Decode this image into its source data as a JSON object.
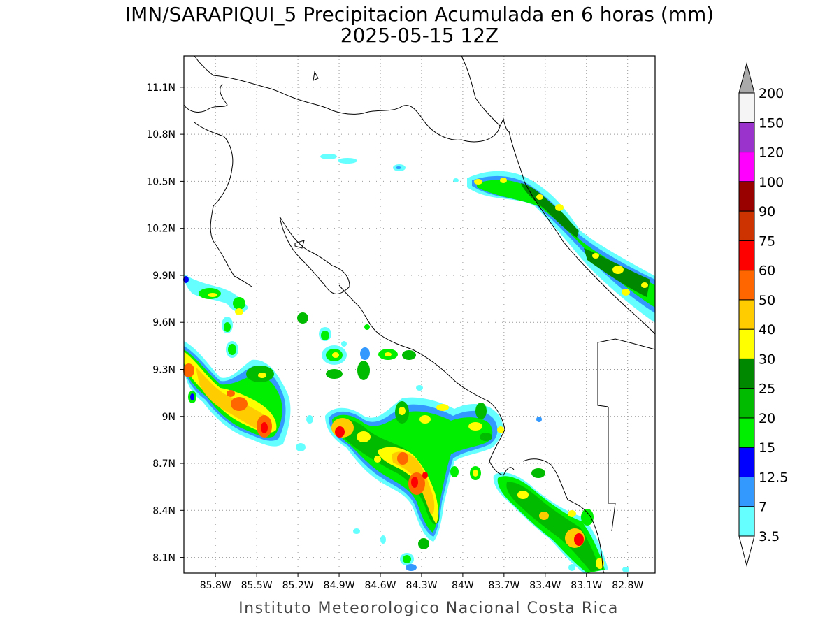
{
  "title": {
    "line1": "IMN/SARAPIQUI_5 Precipitacion Acumulada en 6 horas (mm)",
    "line2": "2025-05-15 12Z"
  },
  "credit": "Instituto Meteorologico Nacional Costa Rica",
  "map": {
    "lon_range": [
      -86.03,
      -82.6
    ],
    "lat_range": [
      8.0,
      11.3
    ],
    "lon_ticks": [
      {
        "value": -85.8,
        "label": "85.8W"
      },
      {
        "value": -85.5,
        "label": "85.5W"
      },
      {
        "value": -85.2,
        "label": "85.2W"
      },
      {
        "value": -84.9,
        "label": "84.9W"
      },
      {
        "value": -84.6,
        "label": "84.6W"
      },
      {
        "value": -84.3,
        "label": "84.3W"
      },
      {
        "value": -84.0,
        "label": "84W"
      },
      {
        "value": -83.7,
        "label": "83.7W"
      },
      {
        "value": -83.4,
        "label": "83.4W"
      },
      {
        "value": -83.1,
        "label": "83.1W"
      },
      {
        "value": -82.8,
        "label": "82.8W"
      }
    ],
    "lat_ticks": [
      {
        "value": 8.1,
        "label": "8.1N"
      },
      {
        "value": 8.4,
        "label": "8.4N"
      },
      {
        "value": 8.7,
        "label": "8.7N"
      },
      {
        "value": 9.0,
        "label": "9N"
      },
      {
        "value": 9.3,
        "label": "9.3N"
      },
      {
        "value": 9.6,
        "label": "9.6N"
      },
      {
        "value": 9.9,
        "label": "9.9N"
      },
      {
        "value": 10.2,
        "label": "10.2N"
      },
      {
        "value": 10.5,
        "label": "10.5N"
      },
      {
        "value": 10.8,
        "label": "10.8N"
      },
      {
        "value": 11.1,
        "label": "11.1N"
      }
    ],
    "grid": true
  },
  "colorbar": {
    "levels": [
      "3.5",
      "7",
      "12.5",
      "15",
      "20",
      "25",
      "30",
      "40",
      "50",
      "60",
      "75",
      "90",
      "100",
      "120",
      "150",
      "200"
    ],
    "colors": [
      "#66ffff",
      "#3399ff",
      "#0000ff",
      "#00ee00",
      "#00bb00",
      "#008800",
      "#ffff00",
      "#ffcc00",
      "#ff6600",
      "#ff0000",
      "#cc3300",
      "#990000",
      "#ff00ff",
      "#9933cc",
      "#f5f5f5",
      "#aaaaaa"
    ]
  }
}
